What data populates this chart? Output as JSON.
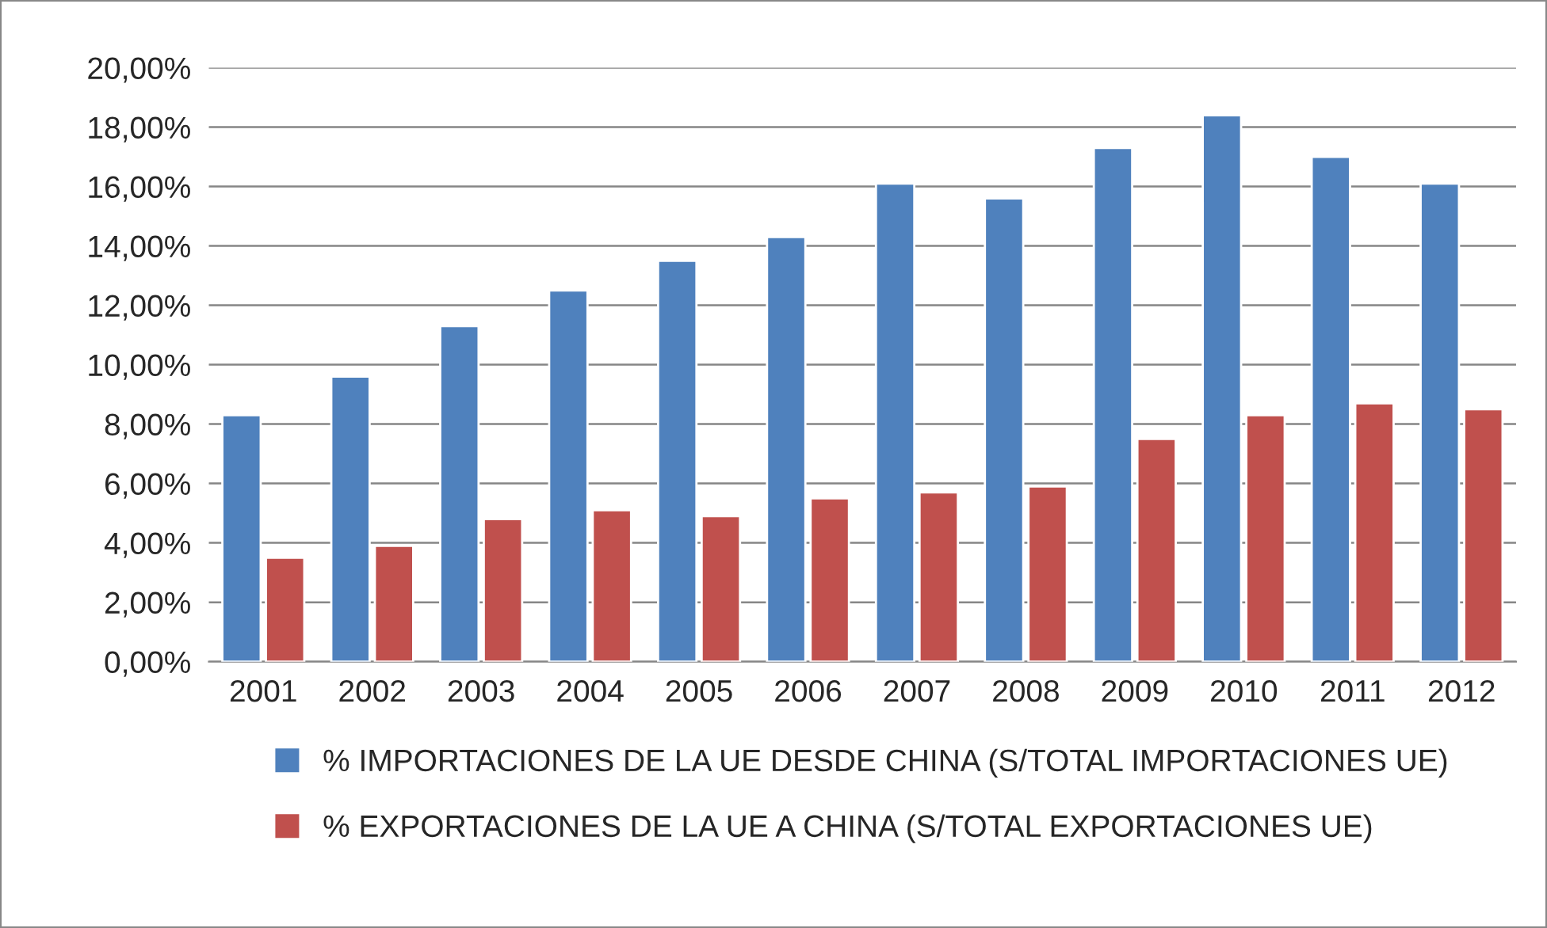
{
  "chart_data": {
    "type": "bar",
    "categories": [
      "2001",
      "2002",
      "2003",
      "2004",
      "2005",
      "2006",
      "2007",
      "2008",
      "2009",
      "2010",
      "2011",
      "2012"
    ],
    "series": [
      {
        "name": "% IMPORTACIONES DE LA UE DESDE CHINA (S/TOTAL IMPORTACIONES UE)",
        "color": "#4f81bd",
        "values": [
          8.3,
          9.6,
          11.3,
          12.5,
          13.5,
          14.3,
          16.1,
          15.6,
          17.3,
          18.4,
          17.0,
          16.1
        ]
      },
      {
        "name": "% EXPORTACIONES DE LA UE A CHINA (S/TOTAL EXPORTACIONES UE)",
        "color": "#c0504d",
        "values": [
          3.5,
          3.9,
          4.8,
          5.1,
          4.9,
          5.5,
          5.7,
          5.9,
          7.5,
          8.3,
          8.7,
          8.5
        ]
      }
    ],
    "ylim": [
      0,
      20
    ],
    "yticks": [
      {
        "value": 0,
        "label": "0,00%"
      },
      {
        "value": 2,
        "label": "2,00%"
      },
      {
        "value": 4,
        "label": "4,00%"
      },
      {
        "value": 6,
        "label": "6,00%"
      },
      {
        "value": 8,
        "label": "8,00%"
      },
      {
        "value": 10,
        "label": "10,00%"
      },
      {
        "value": 12,
        "label": "12,00%"
      },
      {
        "value": 14,
        "label": "14,00%"
      },
      {
        "value": 16,
        "label": "16,00%"
      },
      {
        "value": 18,
        "label": "18,00%"
      },
      {
        "value": 20,
        "label": "20,00%"
      }
    ],
    "grid": "y",
    "legend": "bottom"
  }
}
